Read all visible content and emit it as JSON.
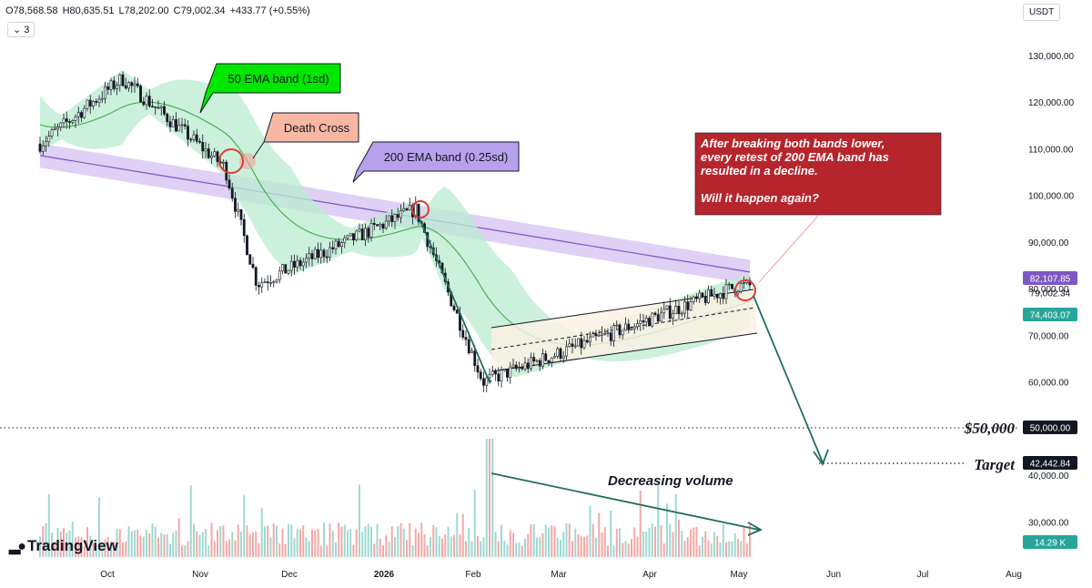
{
  "header": {
    "open": "O78,568.58",
    "high": "H80,635.51",
    "low": "L78,202.00",
    "close": "C79,002.34",
    "change": "+433.77 (+0.55%)",
    "interval_label": "3",
    "currency": "USDT"
  },
  "brand": {
    "logo_text": "TradingView",
    "logo_icon": "tradingview-logo"
  },
  "colors": {
    "up": "#26a69a",
    "down": "#ef5350",
    "ema50": "#4caf50",
    "ema50_band": "#b9ecd0",
    "ema200": "#7e57c2",
    "ema200_band": "#d9c8f5",
    "annotation_red": "#b7252c",
    "arrow": "#1f6f5c"
  },
  "chart_data": {
    "type": "candlestick",
    "price_axis": {
      "ticks": [
        "130,000.00",
        "120,000.00",
        "110,000.00",
        "100,000.00",
        "90,000.00",
        "80,000.00",
        "70,000.00",
        "60,000.00",
        "50,000.00",
        "40,000.00",
        "30,000.00"
      ],
      "range": [
        27000,
        135000
      ]
    },
    "time_axis": {
      "ticks": [
        "Oct",
        "Nov",
        "Dec",
        "2026",
        "Feb",
        "Mar",
        "Apr",
        "May",
        "Jun",
        "Jul",
        "Aug"
      ]
    },
    "price_labels": [
      {
        "text": "82,107.85",
        "value": 82107.85,
        "color": "#7e57c2"
      },
      {
        "text": "79,002.34",
        "value": 79002.34,
        "color": ""
      },
      {
        "text": "74,403.07",
        "value": 74403.07,
        "color": "#26a69a"
      },
      {
        "text": "50,000.00",
        "value": 50000,
        "color": "#131722"
      },
      {
        "text": "42,442.84",
        "value": 42442.84,
        "color": "#131722"
      },
      {
        "text": "14.29 K",
        "value": 14290,
        "color": "#26a69a"
      }
    ],
    "levels": [
      {
        "label": "$50,000",
        "value": 50000
      },
      {
        "label": "Target",
        "value": 42442.84
      }
    ],
    "annotations": [
      {
        "text": "50 EMA band (1sd)",
        "style": "green"
      },
      {
        "text": "Death Cross",
        "style": "salmon"
      },
      {
        "text": "200 EMA band (0.25sd)",
        "style": "purple"
      },
      {
        "lines": [
          "After breaking both bands lower,",
          "every retest of 200 EMA band has",
          "resulted in a decline.",
          "",
          "Will it happen again?"
        ],
        "style": "red"
      },
      {
        "text": "Decreasing volume",
        "style": "plain"
      }
    ],
    "key_points": [
      {
        "date": "2025-10-06",
        "price": 125000
      },
      {
        "date": "2025-11-10",
        "price": 106000
      },
      {
        "date": "2025-11-21",
        "price": 81000
      },
      {
        "date": "2026-01-14",
        "price": 97000
      },
      {
        "date": "2026-02-06",
        "price": 60000
      },
      {
        "date": "2026-05-04",
        "price": 80600
      }
    ]
  }
}
